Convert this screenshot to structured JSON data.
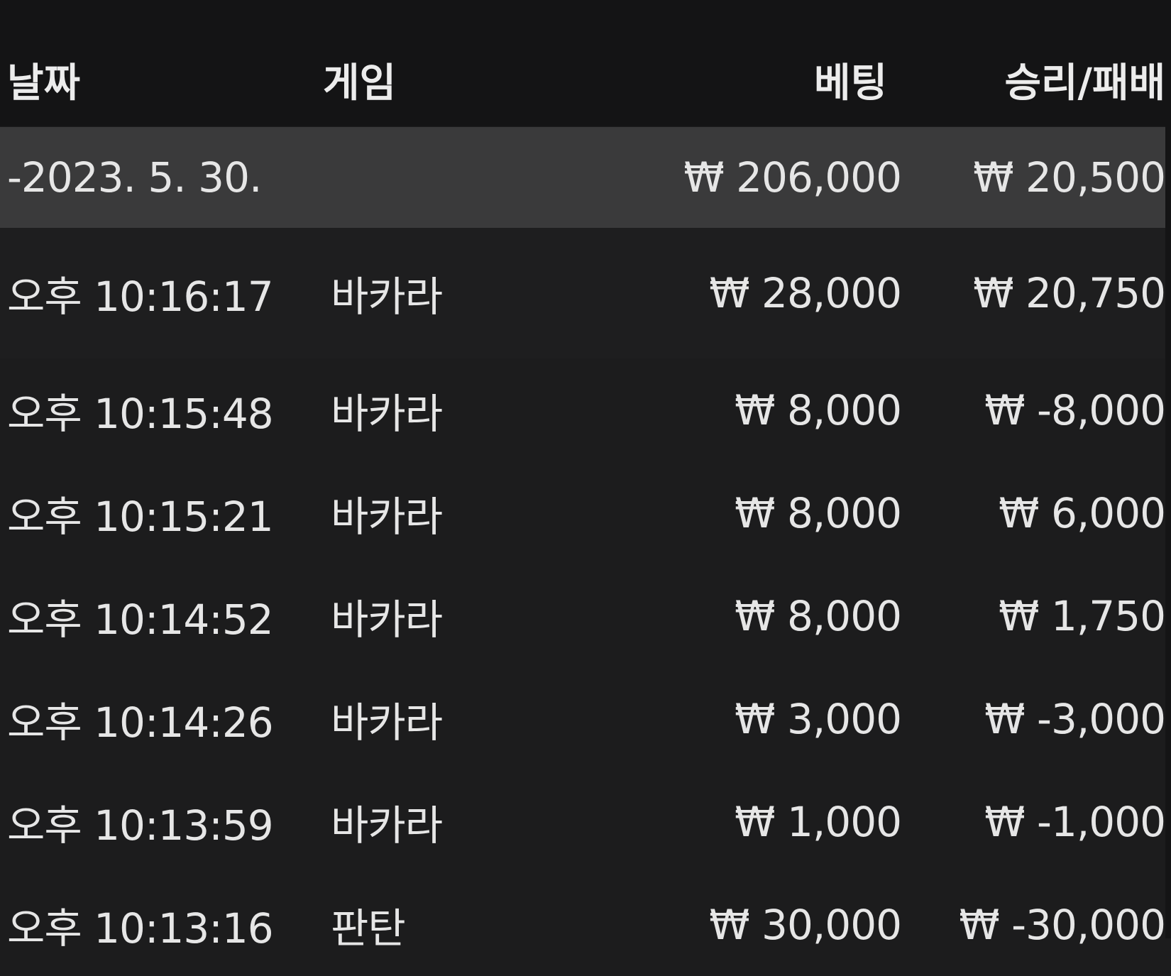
{
  "header": {
    "date": "날짜",
    "game": "게임",
    "bet": "베팅",
    "result": "승리/패배"
  },
  "summary": {
    "date": "-2023. 5. 30.",
    "bet": "₩ 206,000",
    "result": "₩ 20,500"
  },
  "rows": [
    {
      "time": "오후 10:16:17",
      "game": "바카라",
      "bet": "₩ 28,000",
      "result": "₩ 20,750"
    },
    {
      "time": "오후 10:15:48",
      "game": "바카라",
      "bet": "₩ 8,000",
      "result": "₩ -8,000"
    },
    {
      "time": "오후 10:15:21",
      "game": "바카라",
      "bet": "₩ 8,000",
      "result": "₩ 6,000"
    },
    {
      "time": "오후 10:14:52",
      "game": "바카라",
      "bet": "₩ 8,000",
      "result": "₩ 1,750"
    },
    {
      "time": "오후 10:14:26",
      "game": "바카라",
      "bet": "₩ 3,000",
      "result": "₩ -3,000"
    },
    {
      "time": "오후 10:13:59",
      "game": "바카라",
      "bet": "₩ 1,000",
      "result": "₩ -1,000"
    },
    {
      "time": "오후 10:13:16",
      "game": "판탄",
      "bet": "₩ 30,000",
      "result": "₩ -30,000"
    }
  ]
}
